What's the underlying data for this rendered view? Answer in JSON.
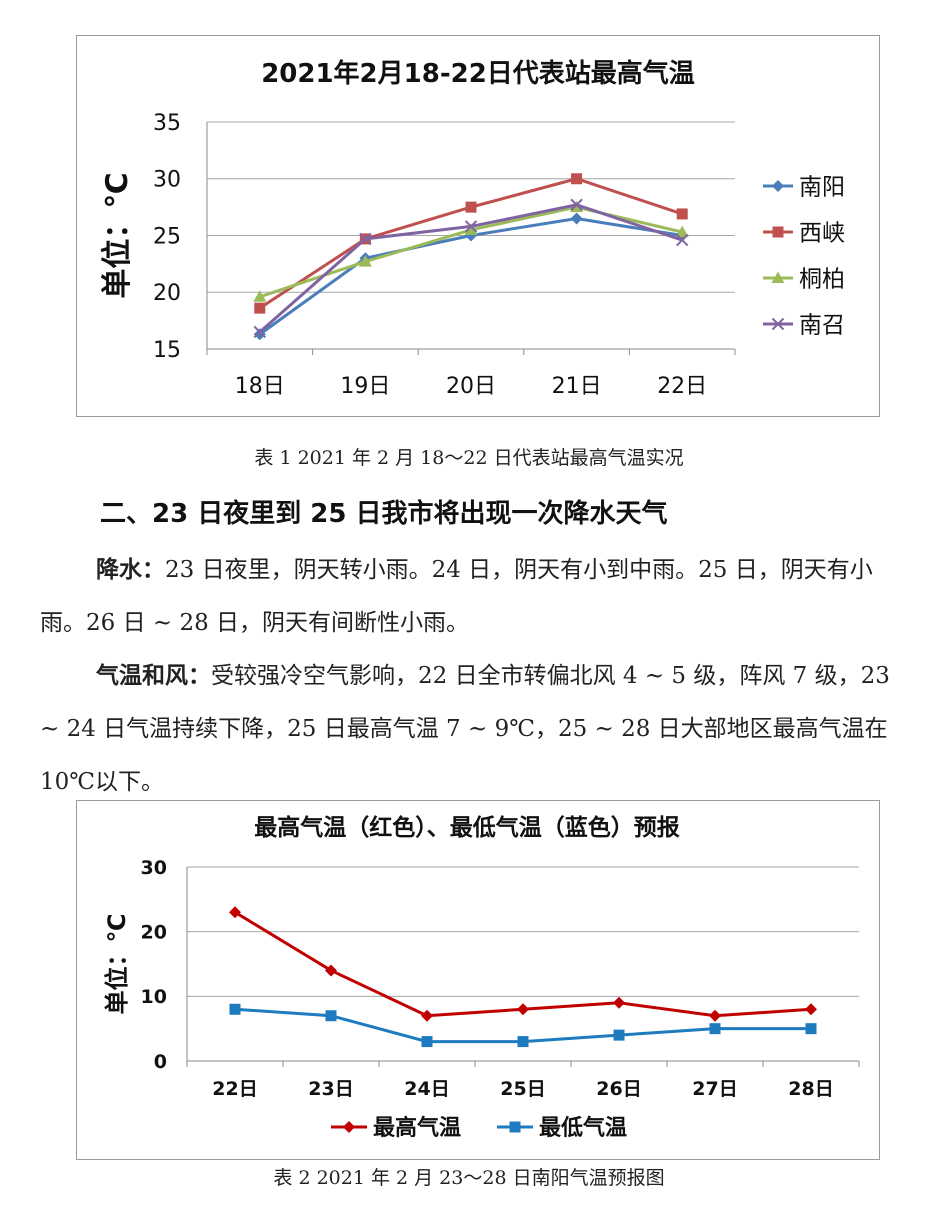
{
  "chart_data": [
    {
      "type": "line",
      "title": "2021年2月18-22日代表站最高气温",
      "ylabel": "单位：℃",
      "xlabel": "",
      "categories": [
        "18日",
        "19日",
        "20日",
        "21日",
        "22日"
      ],
      "ylim": [
        15,
        35
      ],
      "yticks": [
        15,
        20,
        25,
        30,
        35
      ],
      "grid": true,
      "legend": "right",
      "series": [
        {
          "name": "南阳",
          "values": [
            16.3,
            23.0,
            25.0,
            26.5,
            25.0
          ],
          "color": "#4a7ebb",
          "marker": "diamond"
        },
        {
          "name": "西峡",
          "values": [
            18.6,
            24.7,
            27.5,
            30.0,
            26.9
          ],
          "color": "#c0504d",
          "marker": "square"
        },
        {
          "name": "桐柏",
          "values": [
            19.6,
            22.7,
            25.5,
            27.5,
            25.3
          ],
          "color": "#9bbb59",
          "marker": "triangle"
        },
        {
          "name": "南召",
          "values": [
            16.5,
            24.7,
            25.8,
            27.7,
            24.6
          ],
          "color": "#8064a2",
          "marker": "x"
        }
      ]
    },
    {
      "type": "line",
      "title": "最高气温（红色）、最低气温（蓝色）预报",
      "ylabel": "单位：℃",
      "xlabel": "",
      "categories": [
        "22日",
        "23日",
        "24日",
        "25日",
        "26日",
        "27日",
        "28日"
      ],
      "ylim": [
        0,
        30
      ],
      "yticks": [
        0,
        10,
        20,
        30
      ],
      "grid": true,
      "legend": "bottom",
      "series": [
        {
          "name": "最高气温",
          "values": [
            23,
            14,
            7,
            8,
            9,
            7,
            8
          ],
          "color": "#c00000",
          "marker": "diamond"
        },
        {
          "name": "最低气温",
          "values": [
            8,
            7,
            3,
            3,
            4,
            5,
            5
          ],
          "color": "#1f7bc0",
          "marker": "square"
        }
      ]
    }
  ],
  "captions": {
    "chart1": "表 1 2021 年 2 月 18～22 日代表站最高气温实况",
    "chart2": "表 2 2021 年 2 月 23～28 日南阳气温预报图"
  },
  "heading": "二、23 日夜里到 25 日我市将出现一次降水天气",
  "paragraphs": {
    "rain_lead": "降水：",
    "rain_text": "23 日夜里，阴天转小雨。24 日，阴天有小到中雨。25 日，阴天有小雨。26 日 ~ 28 日，阴天有间断性小雨。",
    "temp_lead": "气温和风：",
    "temp_text": "受较强冷空气影响，22 日全市转偏北风 4 ~ 5 级，阵风 7 级，23 ~ 24 日气温持续下降，25 日最高气温 7 ~ 9℃，25 ~ 28 日大部地区最高气温在 10℃以下。"
  }
}
